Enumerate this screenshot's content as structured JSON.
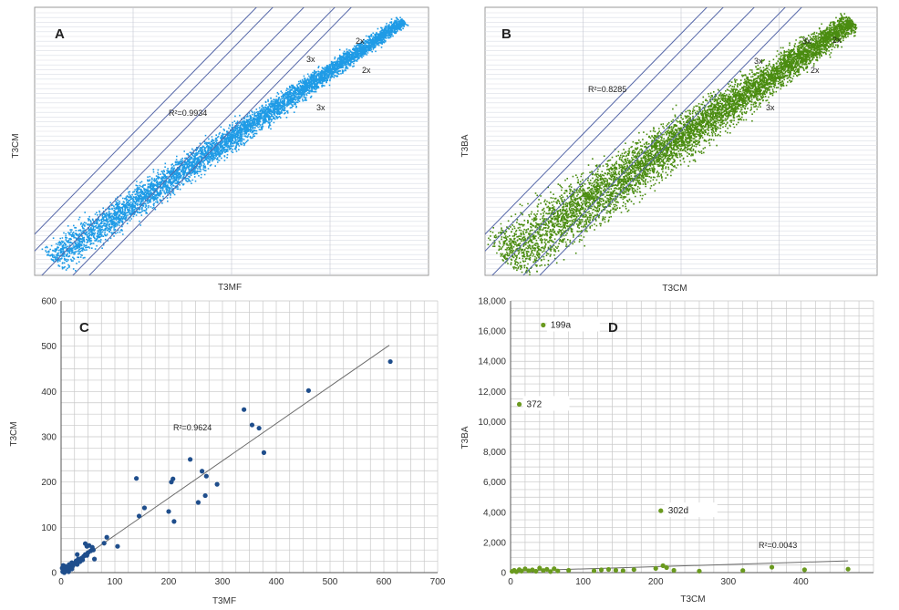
{
  "colors": {
    "blue": "#1f9be6",
    "green": "#4a8c10",
    "dot_blue": "#1f4e8c",
    "dot_green": "#6a9a1f",
    "diag": "#5567a8",
    "grid": "#c8c8c8",
    "hgrid_dense": "#dadde6"
  },
  "chart_data": [
    {
      "panel": "A",
      "type": "scatter",
      "xlabel": "T3MF",
      "ylabel": "T3CM",
      "scale": "log",
      "r2_label": "R²=0.9934",
      "diag_labels": [
        "2x",
        "3x",
        "2x",
        "3x"
      ],
      "point_color": "blue"
    },
    {
      "panel": "B",
      "type": "scatter",
      "xlabel": "T3CM",
      "ylabel": "T3BA",
      "scale": "log",
      "r2_label": "R²=0.8285",
      "diag_labels": [
        "3x",
        "2x",
        "3x",
        "2x",
        "3x"
      ],
      "point_color": "green"
    },
    {
      "panel": "C",
      "type": "scatter",
      "xlabel": "T3MF",
      "ylabel": "T3CM",
      "xlim": [
        0,
        700
      ],
      "ylim": [
        0,
        600
      ],
      "xticks": [
        "0",
        "100",
        "200",
        "300",
        "400",
        "500",
        "600",
        "700"
      ],
      "yticks": [
        "0",
        "100",
        "200",
        "300",
        "400",
        "500",
        "600"
      ],
      "r2_label": "R²=0.9624",
      "trend": [
        [
          0,
          0
        ],
        [
          610,
          502
        ]
      ],
      "points": [
        [
          3,
          2
        ],
        [
          5,
          6
        ],
        [
          8,
          4
        ],
        [
          10,
          12
        ],
        [
          12,
          8
        ],
        [
          15,
          18
        ],
        [
          18,
          10
        ],
        [
          20,
          22
        ],
        [
          22,
          15
        ],
        [
          25,
          20
        ],
        [
          28,
          26
        ],
        [
          30,
          18
        ],
        [
          32,
          30
        ],
        [
          35,
          24
        ],
        [
          38,
          32
        ],
        [
          40,
          28
        ],
        [
          42,
          36
        ],
        [
          45,
          40
        ],
        [
          48,
          38
        ],
        [
          50,
          44
        ],
        [
          52,
          60
        ],
        [
          55,
          48
        ],
        [
          58,
          56
        ],
        [
          60,
          50
        ],
        [
          62,
          30
        ],
        [
          45,
          64
        ],
        [
          48,
          58
        ],
        [
          30,
          40
        ],
        [
          20,
          8
        ],
        [
          8,
          14
        ],
        [
          85,
          78
        ],
        [
          80,
          65
        ],
        [
          105,
          58
        ],
        [
          140,
          208
        ],
        [
          145,
          125
        ],
        [
          155,
          143
        ],
        [
          200,
          135
        ],
        [
          205,
          200
        ],
        [
          208,
          207
        ],
        [
          210,
          113
        ],
        [
          240,
          250
        ],
        [
          255,
          155
        ],
        [
          262,
          224
        ],
        [
          268,
          170
        ],
        [
          270,
          213
        ],
        [
          290,
          195
        ],
        [
          340,
          360
        ],
        [
          355,
          326
        ],
        [
          368,
          319
        ],
        [
          377,
          265
        ],
        [
          460,
          402
        ],
        [
          612,
          466
        ],
        [
          2,
          10
        ],
        [
          6,
          0
        ],
        [
          14,
          2
        ],
        [
          4,
          16
        ]
      ],
      "point_color": "dot_blue"
    },
    {
      "panel": "D",
      "type": "scatter",
      "xlabel": "T3CM",
      "ylabel": "T3BA",
      "xlim": [
        0,
        500
      ],
      "ylim": [
        0,
        18000
      ],
      "xticks": [
        "0",
        "100",
        "200",
        "300",
        "400"
      ],
      "yticks": [
        "0",
        "2,000",
        "4,000",
        "6,000",
        "8,000",
        "10,000",
        "12,000",
        "14,000",
        "16,000",
        "18,000"
      ],
      "r2_label": "R²=0.0043",
      "trend": [
        [
          0,
          100
        ],
        [
          465,
          780
        ]
      ],
      "annotations": [
        {
          "label": "199a",
          "x": 45,
          "y": 16400
        },
        {
          "label": "372",
          "x": 12,
          "y": 11150
        },
        {
          "label": "302d",
          "x": 207,
          "y": 4100
        }
      ],
      "points": [
        [
          45,
          16400
        ],
        [
          12,
          11150
        ],
        [
          207,
          4100
        ],
        [
          2,
          80
        ],
        [
          5,
          150
        ],
        [
          8,
          60
        ],
        [
          12,
          200
        ],
        [
          15,
          100
        ],
        [
          20,
          250
        ],
        [
          25,
          120
        ],
        [
          30,
          180
        ],
        [
          35,
          90
        ],
        [
          40,
          300
        ],
        [
          45,
          140
        ],
        [
          50,
          220
        ],
        [
          55,
          70
        ],
        [
          60,
          260
        ],
        [
          65,
          110
        ],
        [
          80,
          150
        ],
        [
          115,
          120
        ],
        [
          125,
          180
        ],
        [
          135,
          210
        ],
        [
          145,
          160
        ],
        [
          155,
          130
        ],
        [
          170,
          200
        ],
        [
          200,
          280
        ],
        [
          210,
          460
        ],
        [
          215,
          330
        ],
        [
          225,
          150
        ],
        [
          260,
          100
        ],
        [
          320,
          140
        ],
        [
          360,
          360
        ],
        [
          405,
          190
        ],
        [
          465,
          230
        ]
      ],
      "point_color": "dot_green"
    }
  ]
}
